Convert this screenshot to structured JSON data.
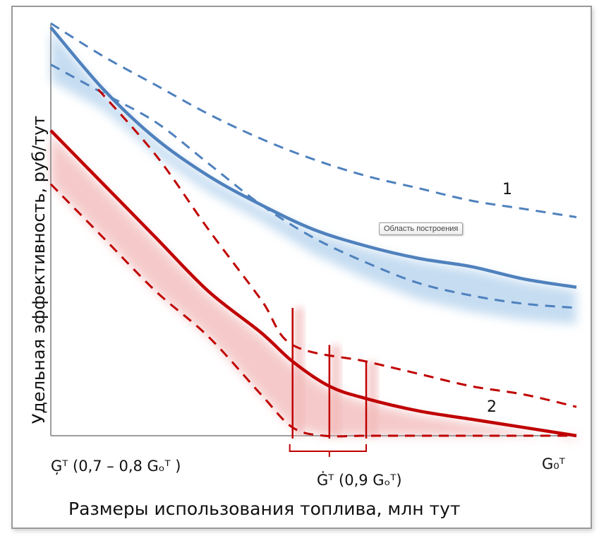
{
  "chart_data": {
    "type": "line",
    "ylabel": "Удельная эффективность, руб/тут",
    "xlabel": "Размеры использования топлива, млн тут",
    "x_ticks": {
      "min_label": "Ģᵀ  (0,7 – 0,8 Gₒᵀ )",
      "mid_label": "Ġᵀ  (0,9 Gₒᵀ)",
      "max_label": "G₀ᵀ"
    },
    "x": [
      0.0,
      0.1,
      0.2,
      0.3,
      0.4,
      0.5,
      0.6,
      0.7,
      0.8,
      0.9,
      1.0
    ],
    "xlim": [
      0,
      1
    ],
    "ylim": [
      0,
      1
    ],
    "curve_labels": [
      "1",
      "2"
    ],
    "tooltip": "Область построения",
    "colors": {
      "blue": "#4f81bd",
      "red": "#c00000",
      "band_blue": "#bcd7ef",
      "band_red": "#f2b8b8"
    },
    "series": [
      {
        "key": "blue_upper",
        "style": "dashed",
        "color": "#4f81bd",
        "x": [
          0.0,
          0.1,
          0.2,
          0.3,
          0.4,
          0.5,
          0.6,
          0.7,
          0.8,
          0.9,
          1.0
        ],
        "values": [
          1.0,
          0.92,
          0.85,
          0.78,
          0.72,
          0.67,
          0.63,
          0.6,
          0.57,
          0.55,
          0.53
        ]
      },
      {
        "key": "blue_main",
        "style": "solid",
        "color": "#4f81bd",
        "x": [
          0.0,
          0.1,
          0.2,
          0.3,
          0.4,
          0.5,
          0.6,
          0.7,
          0.8,
          0.9,
          1.0
        ],
        "values": [
          0.99,
          0.84,
          0.72,
          0.63,
          0.56,
          0.5,
          0.46,
          0.43,
          0.41,
          0.38,
          0.36
        ]
      },
      {
        "key": "blue_lower",
        "style": "dashed",
        "color": "#4f81bd",
        "x": [
          0.0,
          0.1,
          0.2,
          0.3,
          0.4,
          0.5,
          0.6,
          0.7,
          0.8,
          0.9,
          1.0
        ],
        "values": [
          0.9,
          0.83,
          0.76,
          0.66,
          0.56,
          0.48,
          0.42,
          0.37,
          0.34,
          0.32,
          0.31
        ]
      },
      {
        "key": "red_upper",
        "style": "dashed",
        "color": "#c00000",
        "x": [
          0.09,
          0.2,
          0.3,
          0.4,
          0.46,
          0.6,
          0.7,
          0.8,
          0.9,
          1.0
        ],
        "values": [
          0.84,
          0.68,
          0.5,
          0.33,
          0.22,
          0.18,
          0.15,
          0.12,
          0.1,
          0.07
        ]
      },
      {
        "key": "red_main",
        "style": "solid",
        "color": "#c00000",
        "x": [
          0.0,
          0.1,
          0.2,
          0.3,
          0.4,
          0.46,
          0.53,
          0.6,
          0.7,
          0.8,
          0.9,
          1.0
        ],
        "values": [
          0.74,
          0.61,
          0.48,
          0.35,
          0.25,
          0.18,
          0.12,
          0.09,
          0.06,
          0.04,
          0.02,
          0.0
        ]
      },
      {
        "key": "red_lower",
        "style": "dashed",
        "color": "#c00000",
        "x": [
          0.0,
          0.1,
          0.2,
          0.3,
          0.4,
          0.46,
          0.52,
          0.6,
          0.7,
          0.8,
          0.9,
          1.0
        ],
        "values": [
          0.61,
          0.48,
          0.35,
          0.24,
          0.1,
          0.02,
          0.0,
          0.0,
          0.0,
          0.0,
          0.0,
          0.0
        ]
      }
    ],
    "bands": [
      {
        "key": "blue_band",
        "color": "#bcd7ef",
        "upper": "blue_lower",
        "lower": "blue_main",
        "extra": 0.05
      },
      {
        "key": "red_band",
        "color": "#f2b8b8"
      }
    ],
    "vertical_markers": [
      {
        "x": 0.46,
        "y_top": 0.31
      },
      {
        "x": 0.53,
        "y_top": 0.22
      },
      {
        "x": 0.6,
        "y_top": 0.18
      }
    ]
  }
}
